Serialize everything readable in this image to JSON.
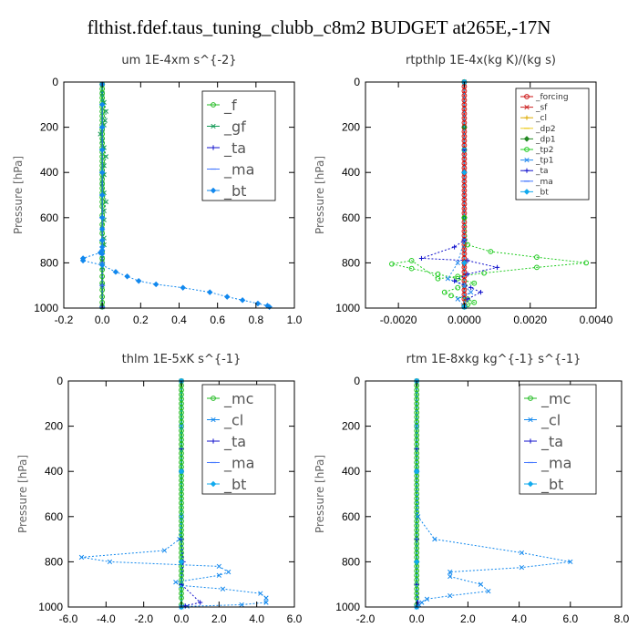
{
  "title": "flthist.fdef.taus_tuning_clubb_c8m2  BUDGET at265E,-17N",
  "chart_data": [
    {
      "type": "line",
      "title": "um   1E-4xm s^{-2}",
      "ylabel": "Pressure [hPa]",
      "xlim": [
        -0.2,
        1.0
      ],
      "ylim": [
        1000,
        0
      ],
      "xticks": [
        "-0.2",
        "0.0",
        "0.2",
        "0.4",
        "0.6",
        "0.8",
        "1.0"
      ],
      "xtick_values": [
        -0.2,
        0.0,
        0.2,
        0.4,
        0.6,
        0.8,
        1.0
      ],
      "yticks": [
        "0",
        "200",
        "400",
        "600",
        "800",
        "1000"
      ],
      "ytick_values": [
        0,
        200,
        400,
        600,
        800,
        1000
      ],
      "legend": "top-right",
      "series": [
        {
          "name": "_f",
          "color": "#22bb22",
          "x": [
            0,
            0,
            0,
            0,
            0,
            0,
            0,
            0,
            0,
            0,
            0,
            0,
            0,
            0,
            0,
            0,
            0,
            0,
            0,
            0,
            0,
            0,
            0,
            0,
            0,
            0,
            0,
            0,
            0,
            0,
            0,
            0,
            0,
            0,
            0,
            0,
            0,
            0,
            0,
            0,
            0,
            0
          ],
          "y": [
            10,
            30,
            50,
            70,
            90,
            110,
            130,
            150,
            170,
            190,
            210,
            230,
            250,
            270,
            290,
            310,
            330,
            350,
            370,
            390,
            410,
            430,
            450,
            470,
            490,
            510,
            530,
            550,
            590,
            630,
            670,
            710,
            750,
            780,
            800,
            830,
            860,
            890,
            920,
            950,
            975,
            995
          ]
        },
        {
          "name": "_gf",
          "color": "#119955",
          "x": [
            0,
            0,
            0.01,
            0.02,
            0.015,
            0.01,
            0.0,
            -0.01,
            0,
            0.01,
            0.02,
            0.01,
            0.01,
            0,
            0.01,
            0.02,
            0.01,
            0.01,
            0,
            0.01,
            0.01,
            0.0,
            0.0,
            0,
            0,
            0.0
          ],
          "y": [
            10,
            50,
            90,
            130,
            170,
            190,
            210,
            230,
            260,
            290,
            330,
            370,
            410,
            450,
            490,
            530,
            570,
            610,
            650,
            690,
            720,
            750,
            780,
            820,
            900,
            995
          ]
        },
        {
          "name": "_ta",
          "color": "#1111cc",
          "x": [
            0,
            0,
            0,
            0,
            0,
            0,
            0,
            0,
            0,
            0
          ],
          "y": [
            100,
            200,
            300,
            400,
            500,
            600,
            700,
            800,
            900,
            995
          ]
        },
        {
          "name": "_ma",
          "color": "#4477ff",
          "x": [
            0,
            0,
            0,
            0,
            0,
            0,
            0,
            0,
            0,
            0
          ],
          "y": [
            100,
            200,
            300,
            400,
            500,
            600,
            700,
            800,
            900,
            995
          ]
        },
        {
          "name": "_bt",
          "color": "#1188ee",
          "x": [
            0,
            0,
            0,
            0,
            0,
            0,
            0,
            0,
            0,
            0,
            0,
            0,
            -0.01,
            -0.1,
            -0.1,
            0.0,
            0.07,
            0.13,
            0.19,
            0.28,
            0.42,
            0.56,
            0.65,
            0.73,
            0.81,
            0.86,
            0.87
          ],
          "y": [
            10,
            100,
            200,
            300,
            400,
            500,
            600,
            650,
            700,
            730,
            745,
            760,
            755,
            780,
            790,
            810,
            840,
            860,
            880,
            895,
            910,
            930,
            950,
            965,
            980,
            990,
            995
          ]
        }
      ]
    },
    {
      "type": "line",
      "title": "rtpthlp   1E-4x(kg K)/(kg s)",
      "ylabel": "Pressure [hPa]",
      "xlim": [
        -0.003,
        0.004
      ],
      "ylim": [
        1000,
        0
      ],
      "xticks": [
        "-0.0020",
        "0.0000",
        "0.0020",
        "0.0040"
      ],
      "xtick_values": [
        -0.002,
        0.0,
        0.002,
        0.004
      ],
      "yticks": [
        "0",
        "200",
        "400",
        "600",
        "800",
        "1000"
      ],
      "ytick_values": [
        0,
        200,
        400,
        600,
        800,
        1000
      ],
      "legend": "top-right",
      "series": [
        {
          "name": "_forcing",
          "color": "#cc1111",
          "x": [
            0,
            0,
            0,
            0,
            0,
            0,
            0,
            0,
            0,
            0,
            0,
            0,
            0,
            0,
            0,
            0,
            0,
            0,
            0,
            0,
            0,
            0,
            0,
            0,
            0,
            0,
            0,
            0,
            0,
            0,
            0,
            0,
            0,
            0,
            0,
            0,
            0,
            0,
            0,
            0,
            0,
            0,
            0,
            0,
            0,
            0,
            0,
            0,
            0,
            0
          ],
          "y": [
            0,
            20,
            40,
            60,
            80,
            100,
            120,
            140,
            160,
            180,
            200,
            220,
            240,
            260,
            280,
            300,
            320,
            340,
            360,
            380,
            400,
            420,
            440,
            460,
            480,
            500,
            520,
            540,
            560,
            580,
            600,
            620,
            640,
            660,
            680,
            700,
            720,
            740,
            760,
            780,
            800,
            820,
            840,
            860,
            880,
            900,
            920,
            940,
            960,
            990
          ]
        },
        {
          "name": "_sf",
          "color": "#cc2222",
          "x": [
            0,
            0,
            0,
            0,
            0,
            0
          ],
          "y": [
            0,
            200,
            400,
            600,
            800,
            990
          ]
        },
        {
          "name": "_cl",
          "color": "#ddaa00",
          "x": [
            0,
            0,
            0,
            0,
            0,
            0
          ],
          "y": [
            0,
            200,
            400,
            600,
            800,
            990
          ]
        },
        {
          "name": "_dp2",
          "color": "#eecc22",
          "x": [
            0,
            0,
            0,
            0,
            0,
            0
          ],
          "y": [
            0,
            200,
            400,
            600,
            800,
            990
          ]
        },
        {
          "name": "_dp1",
          "color": "#228822",
          "x": [
            0,
            0,
            0,
            0,
            0,
            0
          ],
          "y": [
            0,
            200,
            400,
            600,
            800,
            990
          ]
        },
        {
          "name": "_tp2",
          "color": "#22cc22",
          "x": [
            0,
            0,
            0,
            0.0001,
            0.0008,
            0.0022,
            0.0037,
            0.0022,
            0.0006,
            -0.0002,
            -0.0008,
            -0.0016,
            -0.0022,
            -0.0016,
            -0.0008,
            -0.0002,
            0.0003,
            -0.0002,
            -0.0006,
            -0.0004,
            0.0001,
            0.0003,
            0.0001,
            0
          ],
          "y": [
            0,
            300,
            600,
            720,
            750,
            775,
            800,
            820,
            845,
            860,
            870,
            790,
            805,
            825,
            850,
            870,
            890,
            910,
            930,
            945,
            960,
            975,
            985,
            995
          ]
        },
        {
          "name": "_tp1",
          "color": "#2288ee",
          "x": [
            0,
            0,
            0,
            -0.0002,
            -0.0005,
            0.0,
            0.0002,
            -0.0002,
            0
          ],
          "y": [
            0,
            300,
            700,
            800,
            870,
            900,
            930,
            960,
            995
          ]
        },
        {
          "name": "_ta",
          "color": "#1111cc",
          "x": [
            0,
            0,
            0,
            -0.0003,
            -0.0013,
            0.0001,
            0.001,
            0.0001,
            -0.0003,
            0.0002,
            0.0005,
            0.0001,
            0
          ],
          "y": [
            0,
            300,
            700,
            730,
            780,
            790,
            820,
            850,
            880,
            910,
            930,
            960,
            995
          ]
        },
        {
          "name": "_ma",
          "color": "#4477ff",
          "x": [
            0,
            0,
            0,
            0
          ],
          "y": [
            0,
            400,
            800,
            995
          ]
        },
        {
          "name": "_bt",
          "color": "#11aaee",
          "x": [
            0,
            0,
            0,
            0
          ],
          "y": [
            0,
            400,
            800,
            995
          ]
        }
      ]
    },
    {
      "type": "line",
      "title": "thlm   1E-5xK  s^{-1}",
      "ylabel": "Pressure [hPa]",
      "xlim": [
        -6.0,
        6.0
      ],
      "ylim": [
        1000,
        0
      ],
      "xticks": [
        "-6.0",
        "-4.0",
        "-2.0",
        "0.0",
        "2.0",
        "4.0",
        "6.0"
      ],
      "xtick_values": [
        -6,
        -4,
        -2,
        0,
        2,
        4,
        6
      ],
      "yticks": [
        "0",
        "200",
        "400",
        "600",
        "800",
        "1000"
      ],
      "ytick_values": [
        0,
        200,
        400,
        600,
        800,
        1000
      ],
      "legend": "top-right",
      "series": [
        {
          "name": "_mc",
          "color": "#22bb22",
          "x": [
            0,
            0,
            0,
            0,
            0,
            0,
            0,
            0,
            0,
            0,
            0,
            0,
            0,
            0,
            0,
            0,
            0,
            0,
            0,
            0,
            0,
            0,
            0,
            0,
            0,
            0,
            0,
            0,
            0,
            0,
            0,
            0,
            0,
            0,
            0,
            0,
            0,
            0,
            0,
            0,
            0,
            0,
            0,
            0,
            0,
            0,
            0,
            0,
            0,
            0
          ],
          "y": [
            0,
            20,
            40,
            60,
            80,
            100,
            120,
            140,
            160,
            180,
            200,
            220,
            240,
            260,
            280,
            300,
            320,
            340,
            360,
            380,
            400,
            420,
            440,
            460,
            480,
            500,
            520,
            540,
            560,
            580,
            600,
            620,
            640,
            660,
            680,
            700,
            720,
            740,
            760,
            780,
            800,
            820,
            840,
            860,
            880,
            900,
            920,
            940,
            960,
            990
          ]
        },
        {
          "name": "_cl",
          "color": "#1188ee",
          "x": [
            0,
            0,
            0,
            0,
            -0.1,
            -0.9,
            -5.3,
            -3.8,
            2.0,
            2.5,
            2.0,
            -0.3,
            0,
            2.2,
            4.2,
            4.5,
            4.5,
            3.2,
            0.3,
            0.0
          ],
          "y": [
            0,
            200,
            400,
            600,
            700,
            750,
            780,
            800,
            820,
            845,
            860,
            890,
            905,
            920,
            940,
            960,
            980,
            990,
            997,
            1000
          ]
        },
        {
          "name": "_ta",
          "color": "#1111cc",
          "x": [
            0,
            0,
            0,
            0.1,
            0.0,
            1.0,
            0.2,
            0.0
          ],
          "y": [
            0,
            300,
            700,
            800,
            900,
            980,
            995,
            1000
          ]
        },
        {
          "name": "_ma",
          "color": "#4477ff",
          "x": [
            0,
            0,
            0,
            0
          ],
          "y": [
            0,
            400,
            800,
            1000
          ]
        },
        {
          "name": "_bt",
          "color": "#11aaee",
          "x": [
            0,
            0,
            0,
            0
          ],
          "y": [
            0,
            400,
            800,
            1000
          ]
        }
      ]
    },
    {
      "type": "line",
      "title": "rtm   1E-8xkg kg^{-1} s^{-1}",
      "ylabel": "Pressure [hPa]",
      "xlim": [
        -2.0,
        8.0
      ],
      "ylim": [
        1000,
        0
      ],
      "xticks": [
        "-2.0",
        "0.0",
        "2.0",
        "4.0",
        "6.0",
        "8.0"
      ],
      "xtick_values": [
        -2,
        0,
        2,
        4,
        6,
        8
      ],
      "yticks": [
        "0",
        "200",
        "400",
        "600",
        "800",
        "1000"
      ],
      "ytick_values": [
        0,
        200,
        400,
        600,
        800,
        1000
      ],
      "legend": "top-right",
      "series": [
        {
          "name": "_mc",
          "color": "#22bb22",
          "x": [
            0,
            0,
            0,
            0,
            0,
            0,
            0,
            0,
            0,
            0,
            0,
            0,
            0,
            0,
            0,
            0,
            0,
            0,
            0,
            0,
            0,
            0,
            0,
            0,
            0,
            0,
            0,
            0,
            0,
            0,
            0,
            0,
            0,
            0,
            0,
            0,
            0,
            0,
            0,
            0,
            0,
            0,
            0,
            0,
            0,
            0,
            0,
            0,
            0,
            0
          ],
          "y": [
            0,
            20,
            40,
            60,
            80,
            100,
            120,
            140,
            160,
            180,
            200,
            220,
            240,
            260,
            280,
            300,
            320,
            340,
            360,
            380,
            400,
            420,
            440,
            460,
            480,
            500,
            520,
            540,
            560,
            580,
            600,
            620,
            640,
            660,
            680,
            700,
            720,
            740,
            760,
            780,
            800,
            820,
            840,
            860,
            880,
            900,
            920,
            940,
            960,
            990
          ]
        },
        {
          "name": "_cl",
          "color": "#1188ee",
          "x": [
            0,
            0,
            0,
            0.05,
            0.7,
            4.1,
            6.0,
            4.1,
            1.3,
            1.3,
            2.5,
            2.8,
            1.3,
            0.4,
            0.2,
            0.1,
            0.0
          ],
          "y": [
            0,
            200,
            400,
            600,
            700,
            760,
            800,
            825,
            845,
            865,
            900,
            930,
            950,
            965,
            980,
            992,
            1000
          ]
        },
        {
          "name": "_ta",
          "color": "#1111cc",
          "x": [
            0,
            0,
            0,
            0,
            0.05,
            0
          ],
          "y": [
            0,
            300,
            700,
            900,
            980,
            1000
          ]
        },
        {
          "name": "_ma",
          "color": "#4477ff",
          "x": [
            0,
            0,
            0,
            0
          ],
          "y": [
            0,
            400,
            800,
            1000
          ]
        },
        {
          "name": "_bt",
          "color": "#11aaee",
          "x": [
            0,
            0,
            0,
            0
          ],
          "y": [
            0,
            400,
            800,
            1000
          ]
        }
      ]
    }
  ]
}
